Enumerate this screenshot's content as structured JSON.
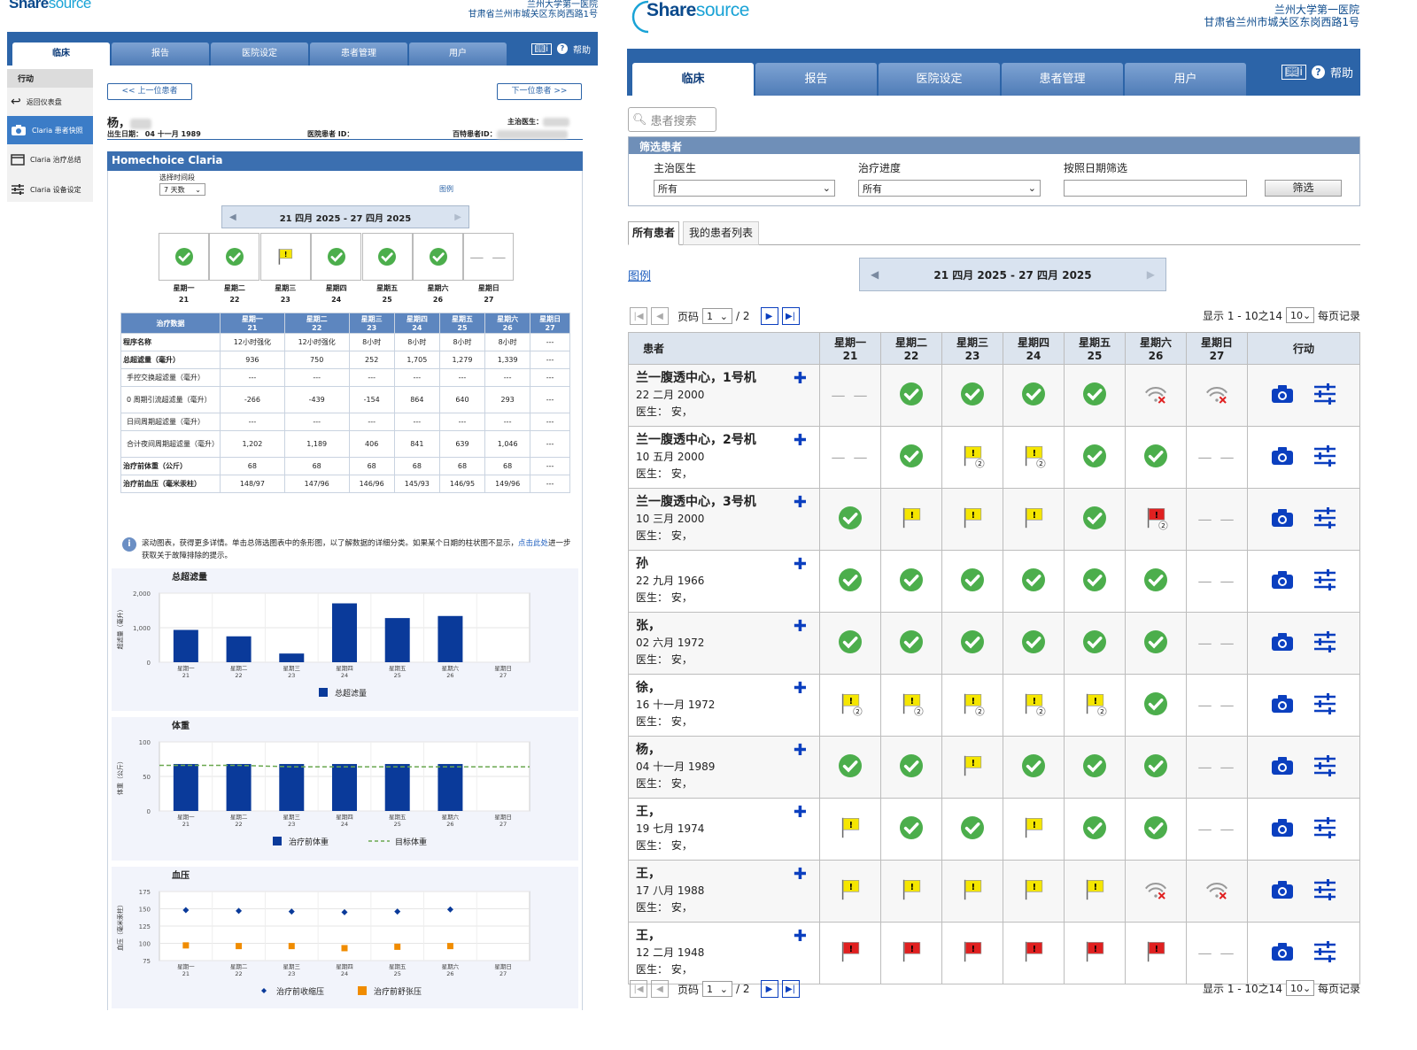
{
  "left": {
    "logo_main": "Share",
    "logo_sub": "source",
    "hospital_name": "兰州大学第一医院",
    "hospital_addr": "甘肃省兰州市城关区东岗西路1号",
    "nav": [
      "临床",
      "报告",
      "医院设定",
      "患者管理",
      "用户"
    ],
    "help": "帮助",
    "sidebar_title": "行动",
    "sidebar": [
      "返回仪表盘",
      "Claria 患者快照",
      "Claria 治疗总结",
      "Claria 设备设定"
    ],
    "prev_patient": "<< 上一位患者",
    "next_patient": "下一位患者 >>",
    "patient_name": "杨，",
    "dob_label": "出生日期：",
    "dob": "04 十一月 1989",
    "hospital_id_label": "医院患者 ID：",
    "doctor_label": "主治医生：",
    "baxter_id_label": "百特患者ID：",
    "section_title": "Homechoice Claria",
    "period_label": "选择时间段",
    "period_value": "7 天数",
    "legend_link": "图例",
    "date_range": "21 四月 2025 - 27 四月 2025",
    "days": [
      {
        "name": "星期一",
        "num": "21",
        "status": "ok"
      },
      {
        "name": "星期二",
        "num": "22",
        "status": "ok"
      },
      {
        "name": "星期三",
        "num": "23",
        "status": "flag"
      },
      {
        "name": "星期四",
        "num": "24",
        "status": "ok"
      },
      {
        "name": "星期五",
        "num": "25",
        "status": "ok"
      },
      {
        "name": "星期六",
        "num": "26",
        "status": "ok"
      },
      {
        "name": "星期日",
        "num": "27",
        "status": "none"
      }
    ],
    "table_header": "治疗数据",
    "table_rows": [
      {
        "label": "程序名称",
        "sub": false,
        "values": [
          "12小时强化",
          "12小时强化",
          "8小时",
          "8小时",
          "8小时",
          "8小时",
          "---"
        ]
      },
      {
        "label": "总超滤量（毫升）",
        "sub": false,
        "values": [
          "936",
          "750",
          "252",
          "1,705",
          "1,279",
          "1,339",
          "---"
        ]
      },
      {
        "label": "手控交换超滤量（毫升）",
        "sub": true,
        "values": [
          "---",
          "---",
          "---",
          "---",
          "---",
          "---",
          "---"
        ]
      },
      {
        "label": "0 周期引流超滤量（毫升）",
        "sub": true,
        "values": [
          "-266",
          "-439",
          "-154",
          "864",
          "640",
          "293",
          "---"
        ]
      },
      {
        "label": "日间周期超滤量（毫升）",
        "sub": true,
        "values": [
          "---",
          "---",
          "---",
          "---",
          "---",
          "---",
          "---"
        ]
      },
      {
        "label": "合计夜间周期超滤量（毫升）",
        "sub": true,
        "values": [
          "1,202",
          "1,189",
          "406",
          "841",
          "639",
          "1,046",
          "---"
        ]
      },
      {
        "label": "治疗前体重（公斤）",
        "sub": false,
        "values": [
          "68",
          "68",
          "68",
          "68",
          "68",
          "68",
          "---"
        ]
      },
      {
        "label": "治疗前血压（毫米汞柱）",
        "sub": false,
        "values": [
          "148/97",
          "147/96",
          "146/96",
          "145/93",
          "146/95",
          "149/96",
          "---"
        ]
      }
    ],
    "info_text": "滚动图表，获得更多详情。单击总筛选图表中的条形图，以了解数据的详细分类。如果某个日期的柱状图不显示，",
    "info_link": "点击此处",
    "info_text2": "进一步获取关于故障排除的提示。"
  },
  "chart_data": [
    {
      "type": "bar",
      "title": "总超滤量",
      "ylabel": "超滤量（毫升）",
      "categories": [
        "星期一 21",
        "星期二 22",
        "星期三 23",
        "星期四 24",
        "星期五 25",
        "星期六 26",
        "星期日 27"
      ],
      "ylim": [
        0,
        2000
      ],
      "yticks": [
        "0",
        "1,000",
        "2,000"
      ],
      "series": [
        {
          "name": "总超滤量",
          "values": [
            936,
            750,
            252,
            1705,
            1279,
            1339,
            null
          ],
          "color": "#0a3a9a"
        }
      ]
    },
    {
      "type": "bar",
      "title": "体重",
      "ylabel": "体重（公斤）",
      "categories": [
        "星期一 21",
        "星期二 22",
        "星期三 23",
        "星期四 24",
        "星期五 25",
        "星期六 26",
        "星期日 27"
      ],
      "ylim": [
        0,
        100
      ],
      "yticks": [
        "0",
        "50",
        "100"
      ],
      "series": [
        {
          "name": "治疗前体重",
          "values": [
            68,
            68,
            68,
            68,
            68,
            68,
            null
          ],
          "color": "#0a3a9a"
        },
        {
          "name": "目标体重",
          "values": [
            66,
            66,
            64,
            64,
            64,
            64,
            64
          ],
          "color": "#6aa84f",
          "style": "dashed"
        }
      ]
    },
    {
      "type": "scatter",
      "title": "血压",
      "ylabel": "血压（毫米汞柱）",
      "categories": [
        "星期一 21",
        "星期二 22",
        "星期三 23",
        "星期四 24",
        "星期五 25",
        "星期六 26",
        "星期日 27"
      ],
      "ylim": [
        75,
        175
      ],
      "yticks": [
        "75",
        "100",
        "125",
        "150",
        "175"
      ],
      "series": [
        {
          "name": "治疗前收缩压",
          "values": [
            148,
            147,
            146,
            145,
            146,
            149,
            null
          ],
          "color": "#0a3a9a",
          "marker": "diamond"
        },
        {
          "name": "治疗前舒张压",
          "values": [
            97,
            96,
            96,
            93,
            95,
            96,
            null
          ],
          "color": "#f08c00",
          "marker": "square"
        }
      ]
    }
  ],
  "right": {
    "logo_main": "Share",
    "logo_sub": "source",
    "hospital_name": "兰州大学第一医院",
    "hospital_addr": "甘肃省兰州市城关区东岗西路1号",
    "nav": [
      "临床",
      "报告",
      "医院设定",
      "患者管理",
      "用户"
    ],
    "help": "帮助",
    "search_placeholder": "患者搜索",
    "filter_title": "筛选患者",
    "filter_doctor_label": "主治医生",
    "filter_doctor_value": "所有",
    "filter_progress_label": "治疗进度",
    "filter_progress_value": "所有",
    "filter_date_label": "按照日期筛选",
    "filter_button": "筛选",
    "tabs": [
      "所有患者",
      "我的患者列表"
    ],
    "legend_link": "图例",
    "date_range": "21 四月 2025 - 27 四月 2025",
    "page_label": "页码",
    "page_value": "1",
    "page_total": "/ 2",
    "display_info": "显示 1 - 10之14",
    "per_page": "10",
    "per_page_label": "每页记录",
    "col_patient": "患者",
    "col_action": "行动",
    "day_cols": [
      {
        "name": "星期一",
        "num": "21"
      },
      {
        "name": "星期二",
        "num": "22"
      },
      {
        "name": "星期三",
        "num": "23"
      },
      {
        "name": "星期四",
        "num": "24"
      },
      {
        "name": "星期五",
        "num": "25"
      },
      {
        "name": "星期六",
        "num": "26"
      },
      {
        "name": "星期日",
        "num": "27"
      }
    ],
    "patients": [
      {
        "name": "兰一腹透中心，1号机",
        "dob": "22 二月 2000",
        "doc": "医生： 安，",
        "s": [
          "none",
          "ok",
          "ok",
          "ok",
          "ok",
          "wifi",
          "wifi"
        ]
      },
      {
        "name": "兰一腹透中心，2号机",
        "dob": "10 五月 2000",
        "doc": "医生： 安，",
        "s": [
          "none",
          "ok",
          "flag2",
          "flag2",
          "ok",
          "ok",
          "none"
        ]
      },
      {
        "name": "兰一腹透中心，3号机",
        "dob": "10 三月 2000",
        "doc": "医生： 安，",
        "s": [
          "ok",
          "flag",
          "flag",
          "flag",
          "ok",
          "red2",
          "none"
        ]
      },
      {
        "name": "孙",
        "dob": "22 九月 1966",
        "doc": "医生： 安，",
        "s": [
          "ok",
          "ok",
          "ok",
          "ok",
          "ok",
          "ok",
          "none"
        ]
      },
      {
        "name": "张，",
        "dob": "02 六月 1972",
        "doc": "医生： 安，",
        "s": [
          "ok",
          "ok",
          "ok",
          "ok",
          "ok",
          "ok",
          "none"
        ]
      },
      {
        "name": "徐，",
        "dob": "16 十一月 1972",
        "doc": "医生： 安，",
        "s": [
          "flag2",
          "flag2",
          "flag2",
          "flag2",
          "flag2",
          "ok",
          "none"
        ]
      },
      {
        "name": "杨，",
        "dob": "04 十一月 1989",
        "doc": "医生： 安，",
        "s": [
          "ok",
          "ok",
          "flag",
          "ok",
          "ok",
          "ok",
          "none"
        ]
      },
      {
        "name": "王，",
        "dob": "19 七月 1974",
        "doc": "医生： 安，",
        "s": [
          "flag",
          "ok",
          "ok",
          "flag",
          "ok",
          "ok",
          "none"
        ]
      },
      {
        "name": "王，",
        "dob": "17 八月 1988",
        "doc": "医生： 安，",
        "s": [
          "flag",
          "flag",
          "flag",
          "flag",
          "flag",
          "wifi",
          "wifi"
        ]
      },
      {
        "name": "王，",
        "dob": "12 二月 1948",
        "doc": "医生： 安，",
        "s": [
          "red",
          "red",
          "red",
          "red",
          "red",
          "red",
          "none"
        ]
      }
    ]
  }
}
